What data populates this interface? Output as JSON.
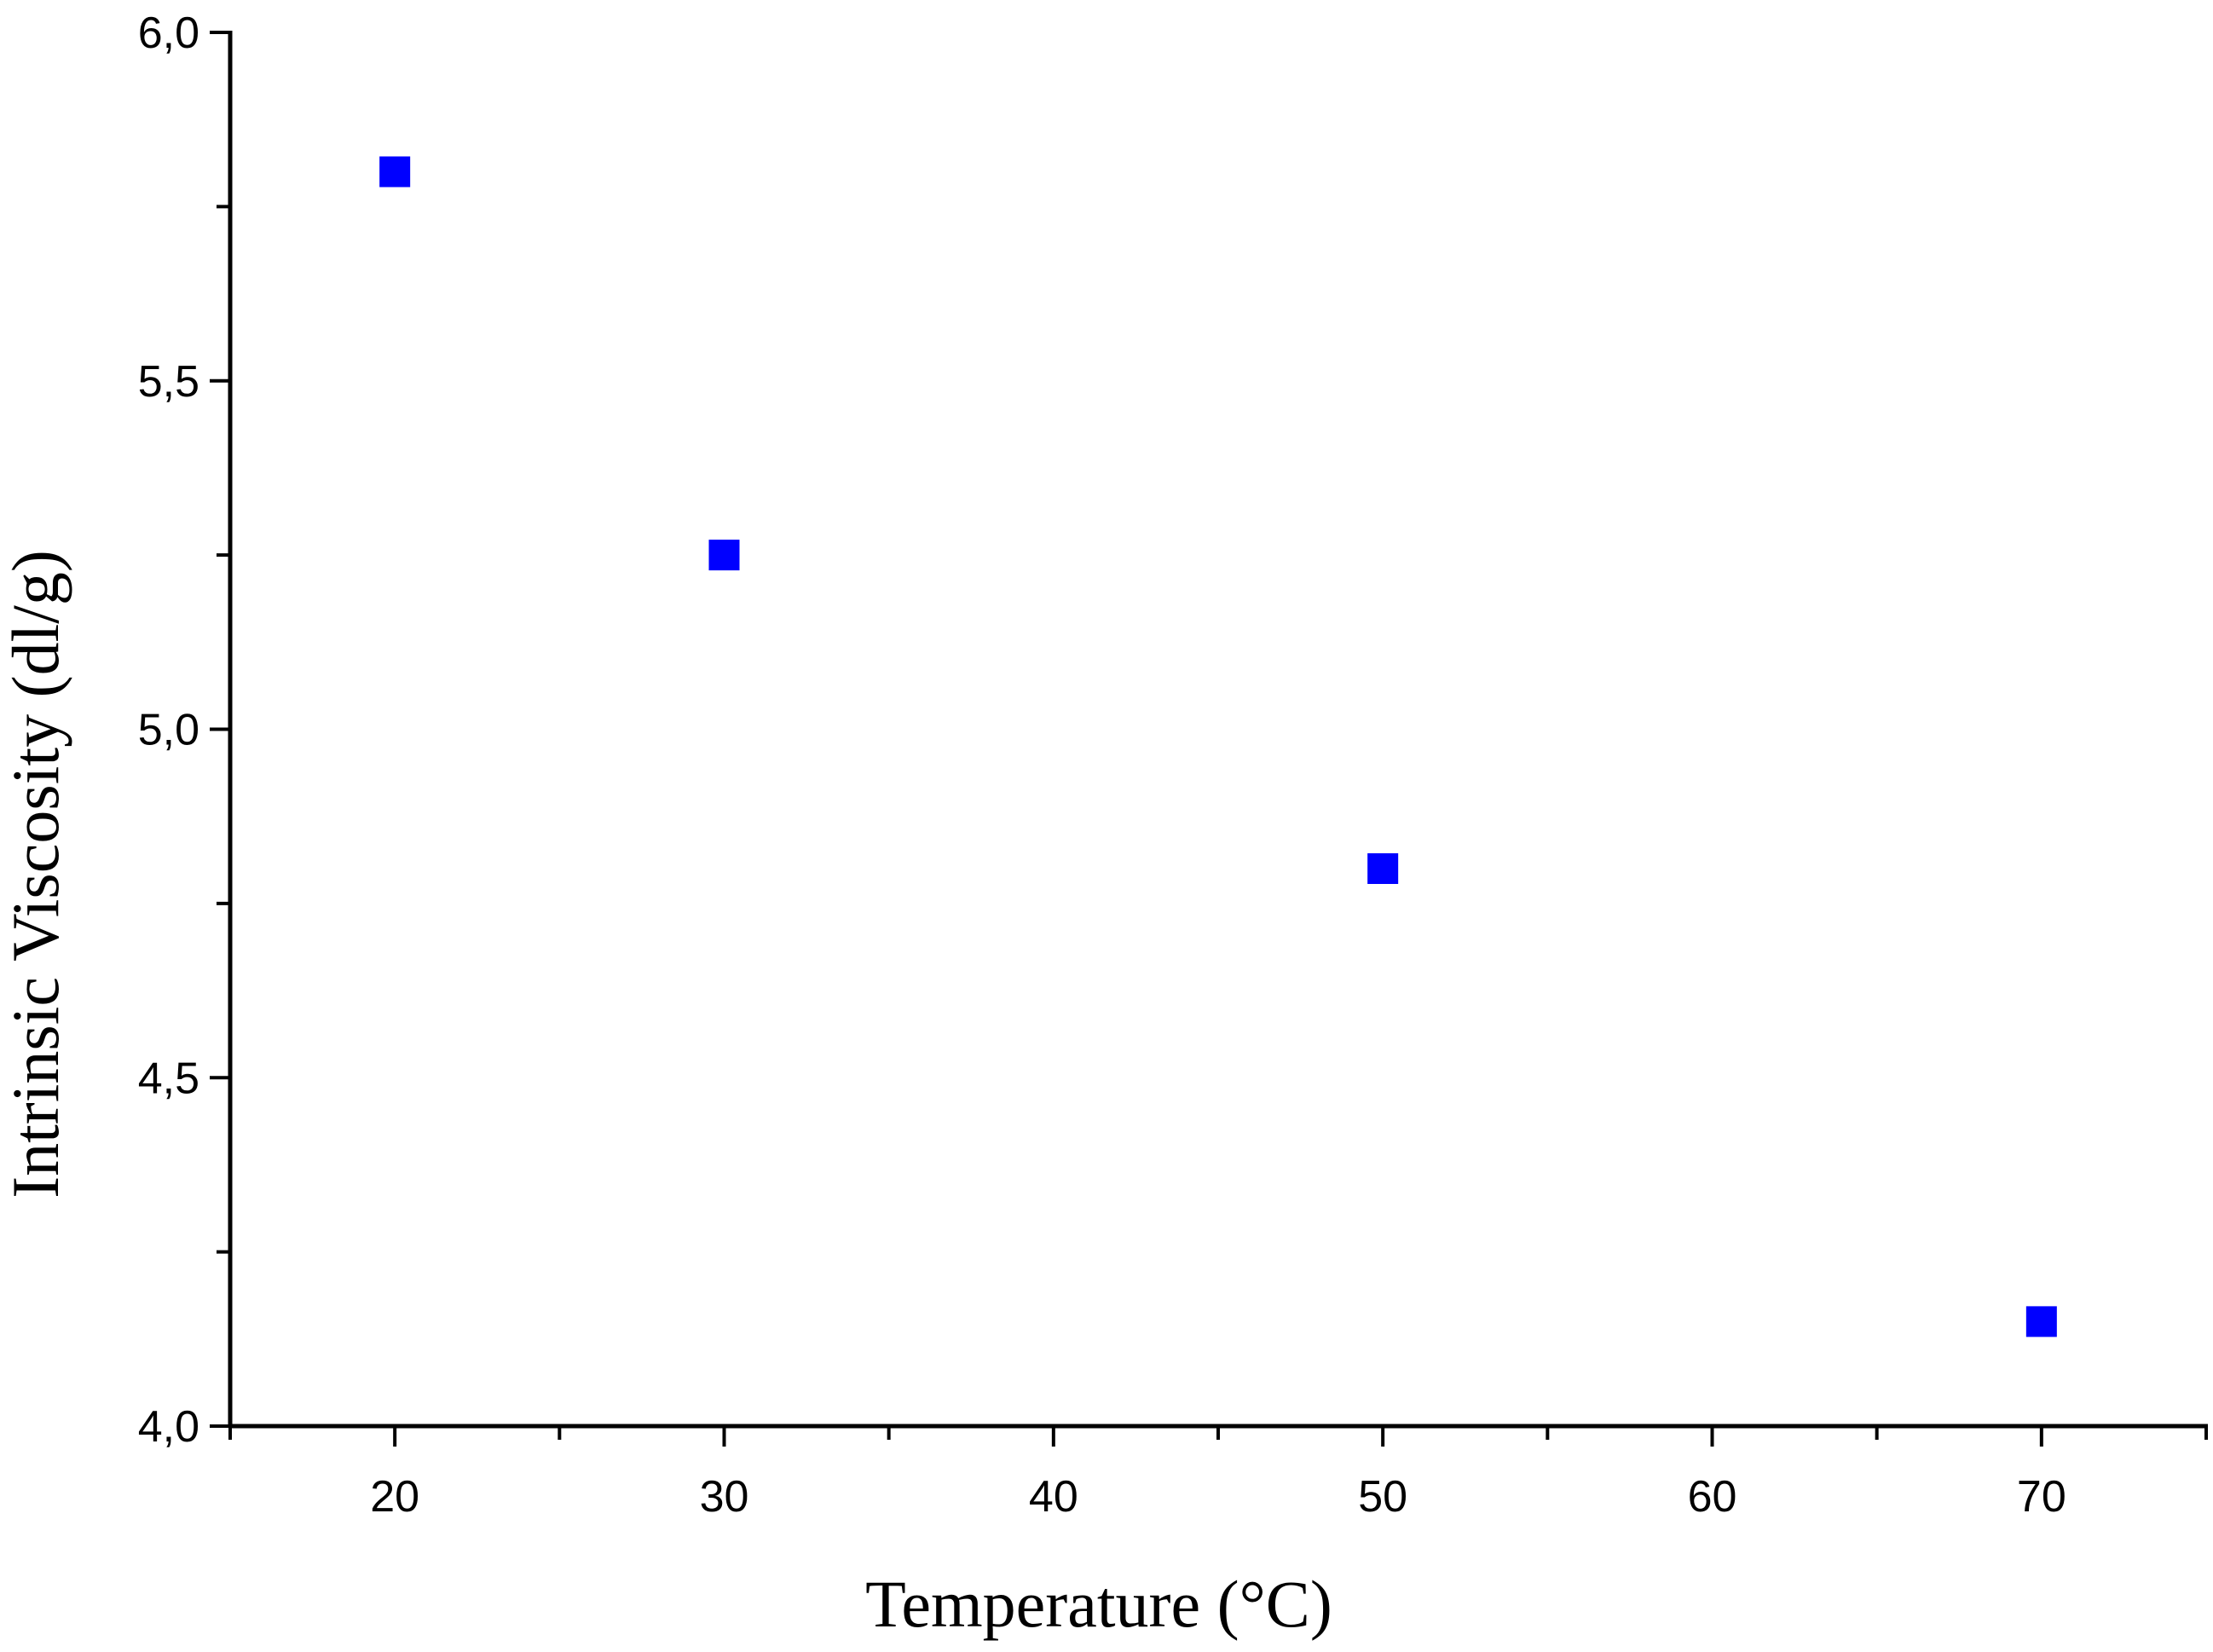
{
  "chart_data": {
    "type": "scatter",
    "title": "",
    "xlabel": "Temperature (°C)",
    "ylabel": "Intrinsic Viscosity (dl/g)",
    "xlim": [
      15,
      75
    ],
    "ylim": [
      4.0,
      6.0
    ],
    "x_major_ticks": [
      20,
      30,
      40,
      50,
      60,
      70
    ],
    "x_minor_ticks": [
      15,
      25,
      35,
      45,
      55,
      65,
      75
    ],
    "x_tick_labels": [
      "20",
      "30",
      "40",
      "50",
      "60",
      "70"
    ],
    "y_major_ticks": [
      4.0,
      4.5,
      5.0,
      5.5,
      6.0
    ],
    "y_minor_ticks": [
      4.25,
      4.75,
      5.25,
      5.75
    ],
    "y_tick_labels": [
      "4,0",
      "4,5",
      "5,0",
      "5,5",
      "6,0"
    ],
    "grid": false,
    "marker": "square",
    "color": "#0000ff",
    "series": [
      {
        "x": [
          20,
          30,
          50,
          70
        ],
        "y": [
          5.8,
          5.25,
          4.8,
          4.15
        ]
      }
    ]
  }
}
